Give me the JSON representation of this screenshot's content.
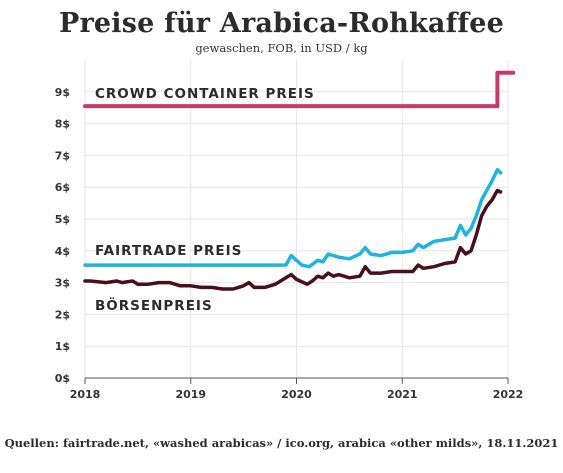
{
  "chart_data": {
    "type": "line",
    "title": "Preise für Arabica-Rohkaffee",
    "subtitle": "gewaschen, FOB, in USD / kg",
    "source": "Quellen: fairtrade.net, «washed arabicas» / ico.org, arabica «other milds», 18.11.2021",
    "xlim": [
      2018,
      2022
    ],
    "ylim": [
      0,
      10
    ],
    "x_ticks": [
      "2018",
      "2019",
      "2020",
      "2021",
      "2022"
    ],
    "y_ticks": [
      "0$",
      "1$",
      "2$",
      "3$",
      "4$",
      "5$",
      "6$",
      "7$",
      "8$",
      "9$"
    ],
    "grid": true,
    "series": [
      {
        "name": "CROWD CONTAINER PREIS",
        "color": "#c8396a",
        "step": true,
        "x": [
          2018.0,
          2021.9,
          2021.9,
          2022.05
        ],
        "y": [
          8.55,
          8.55,
          9.6,
          9.6
        ]
      },
      {
        "name": "FAIRTRADE PREIS",
        "color": "#1fb3e0",
        "x": [
          2018.0,
          2019.5,
          2019.9,
          2019.95,
          2020.05,
          2020.12,
          2020.2,
          2020.25,
          2020.3,
          2020.35,
          2020.4,
          2020.5,
          2020.6,
          2020.65,
          2020.7,
          2020.8,
          2020.9,
          2021.0,
          2021.1,
          2021.15,
          2021.2,
          2021.3,
          2021.4,
          2021.5,
          2021.55,
          2021.6,
          2021.65,
          2021.7,
          2021.75,
          2021.8,
          2021.85,
          2021.9,
          2021.93
        ],
        "y": [
          3.55,
          3.55,
          3.55,
          3.85,
          3.55,
          3.5,
          3.7,
          3.65,
          3.9,
          3.85,
          3.8,
          3.75,
          3.9,
          4.1,
          3.9,
          3.85,
          3.95,
          3.95,
          4.0,
          4.2,
          4.1,
          4.3,
          4.35,
          4.4,
          4.8,
          4.5,
          4.7,
          5.1,
          5.6,
          5.9,
          6.2,
          6.55,
          6.45
        ]
      },
      {
        "name": "BÖRSENPREIS",
        "color": "#4a0f1f",
        "x": [
          2018.0,
          2018.05,
          2018.2,
          2018.3,
          2018.35,
          2018.45,
          2018.5,
          2018.6,
          2018.7,
          2018.8,
          2018.9,
          2019.0,
          2019.1,
          2019.2,
          2019.3,
          2019.4,
          2019.45,
          2019.5,
          2019.55,
          2019.6,
          2019.7,
          2019.75,
          2019.8,
          2019.9,
          2019.95,
          2020.0,
          2020.1,
          2020.15,
          2020.2,
          2020.25,
          2020.3,
          2020.35,
          2020.4,
          2020.5,
          2020.6,
          2020.65,
          2020.7,
          2020.8,
          2020.9,
          2021.0,
          2021.1,
          2021.15,
          2021.2,
          2021.3,
          2021.4,
          2021.5,
          2021.55,
          2021.6,
          2021.65,
          2021.7,
          2021.75,
          2021.8,
          2021.85,
          2021.9,
          2021.93
        ],
        "y": [
          3.05,
          3.05,
          3.0,
          3.05,
          3.0,
          3.05,
          2.95,
          2.95,
          3.0,
          3.0,
          2.9,
          2.9,
          2.85,
          2.85,
          2.8,
          2.8,
          2.85,
          2.9,
          3.0,
          2.85,
          2.85,
          2.9,
          2.95,
          3.15,
          3.25,
          3.1,
          2.95,
          3.05,
          3.2,
          3.15,
          3.3,
          3.2,
          3.25,
          3.15,
          3.2,
          3.5,
          3.3,
          3.3,
          3.35,
          3.35,
          3.35,
          3.55,
          3.45,
          3.5,
          3.6,
          3.65,
          4.1,
          3.9,
          4.0,
          4.5,
          5.1,
          5.4,
          5.6,
          5.9,
          5.85
        ]
      }
    ]
  }
}
